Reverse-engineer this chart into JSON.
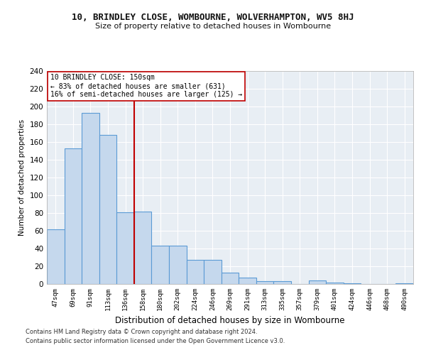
{
  "title": "10, BRINDLEY CLOSE, WOMBOURNE, WOLVERHAMPTON, WV5 8HJ",
  "subtitle": "Size of property relative to detached houses in Wombourne",
  "xlabel": "Distribution of detached houses by size in Wombourne",
  "ylabel": "Number of detached properties",
  "categories": [
    "47sqm",
    "69sqm",
    "91sqm",
    "113sqm",
    "136sqm",
    "158sqm",
    "180sqm",
    "202sqm",
    "224sqm",
    "246sqm",
    "269sqm",
    "291sqm",
    "313sqm",
    "335sqm",
    "357sqm",
    "379sqm",
    "401sqm",
    "424sqm",
    "446sqm",
    "468sqm",
    "490sqm"
  ],
  "values": [
    62,
    153,
    193,
    168,
    81,
    82,
    43,
    43,
    27,
    27,
    13,
    7,
    3,
    3,
    0,
    4,
    2,
    1,
    0,
    0,
    1
  ],
  "bar_color": "#c5d8ed",
  "bar_edge_color": "#5b9bd5",
  "bar_edge_width": 0.8,
  "vline_color": "#c00000",
  "vline_linewidth": 1.5,
  "annotation_text": "10 BRINDLEY CLOSE: 150sqm\n← 83% of detached houses are smaller (631)\n16% of semi-detached houses are larger (125) →",
  "annotation_box_color": "#ffffff",
  "annotation_box_edge": "#c00000",
  "ylim": [
    0,
    240
  ],
  "yticks": [
    0,
    20,
    40,
    60,
    80,
    100,
    120,
    140,
    160,
    180,
    200,
    220,
    240
  ],
  "background_color": "#e8eef4",
  "grid_color": "#ffffff",
  "fig_background": "#ffffff",
  "footer1": "Contains HM Land Registry data © Crown copyright and database right 2024.",
  "footer2": "Contains public sector information licensed under the Open Government Licence v3.0."
}
